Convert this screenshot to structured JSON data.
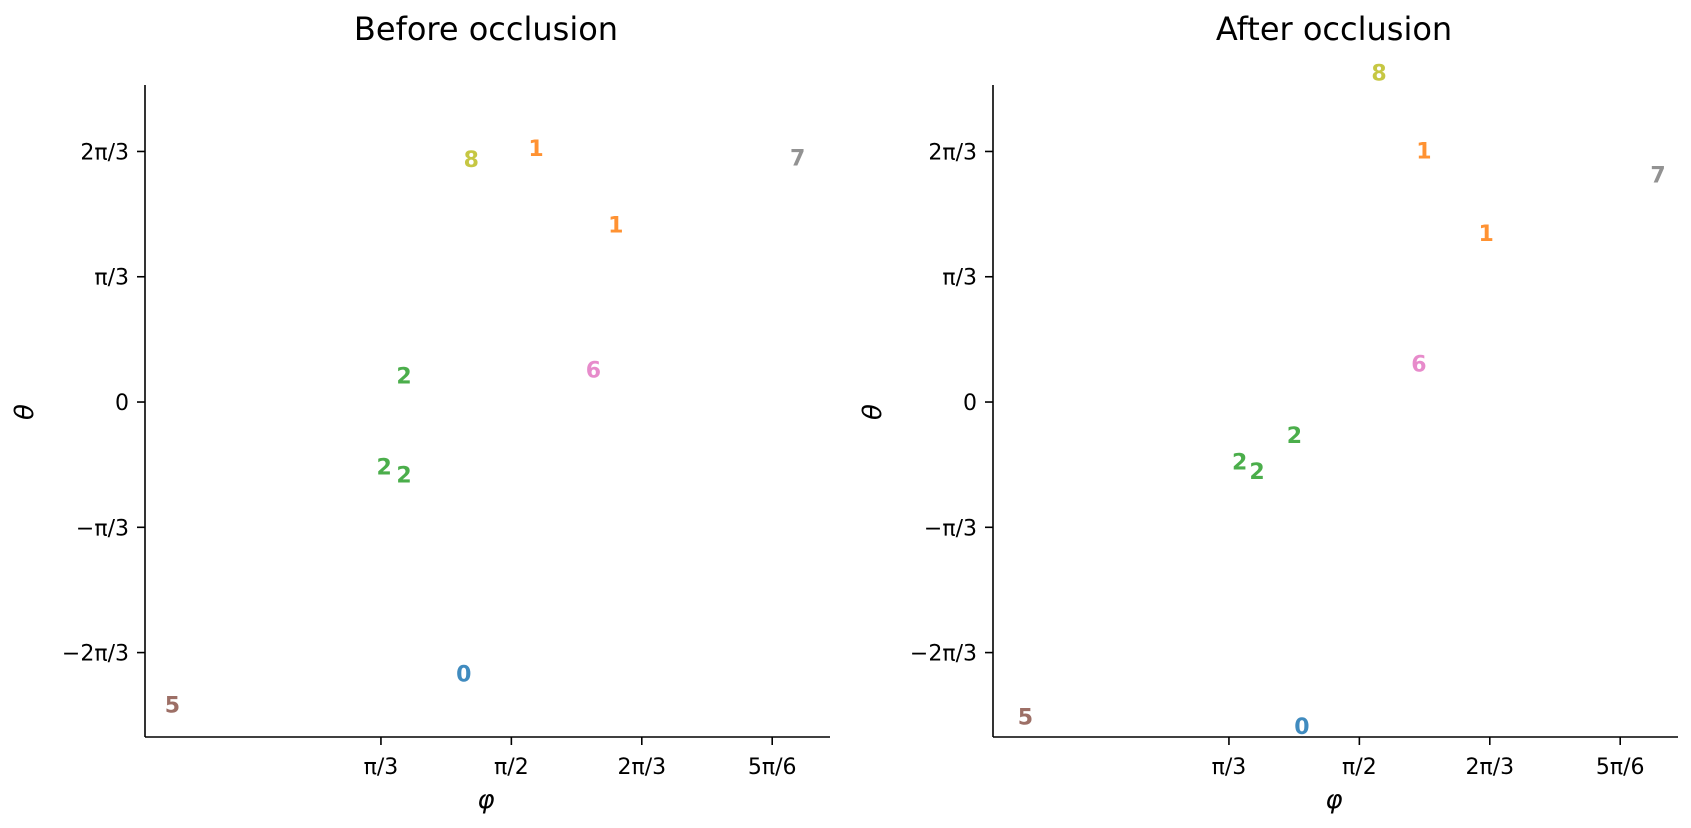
{
  "chart_data": [
    {
      "type": "scatter",
      "title": "Before occlusion",
      "xlabel": "φ",
      "ylabel": "θ",
      "x_unit": "radians",
      "y_unit": "radians",
      "xlim": [
        0.1,
        2.85
      ],
      "ylim": [
        -2.8,
        2.65
      ],
      "xticks": [
        {
          "value": 1.0472,
          "label": "π/3"
        },
        {
          "value": 1.5708,
          "label": "π/2"
        },
        {
          "value": 2.0944,
          "label": "2π/3"
        },
        {
          "value": 2.618,
          "label": "5π/6"
        }
      ],
      "yticks": [
        {
          "value": 2.0944,
          "label": "2π/3"
        },
        {
          "value": 1.0472,
          "label": "π/3"
        },
        {
          "value": 0,
          "label": "0"
        },
        {
          "value": -1.0472,
          "label": "−π/3"
        },
        {
          "value": -2.0944,
          "label": "−2π/3"
        }
      ],
      "grid": false,
      "marker_type": "digit label",
      "points": [
        {
          "label": "1",
          "x": 1.67,
          "y": 2.11,
          "color": "#ff7f0e"
        },
        {
          "label": "8",
          "x": 1.41,
          "y": 2.02,
          "color": "#bcbd22"
        },
        {
          "label": "7",
          "x": 2.72,
          "y": 2.03,
          "color": "#7f7f7f"
        },
        {
          "label": "1",
          "x": 1.99,
          "y": 1.47,
          "color": "#ff7f0e"
        },
        {
          "label": "2",
          "x": 1.14,
          "y": 0.21,
          "color": "#2ca02c"
        },
        {
          "label": "6",
          "x": 1.9,
          "y": 0.26,
          "color": "#e377c2"
        },
        {
          "label": "2",
          "x": 1.06,
          "y": -0.55,
          "color": "#2ca02c"
        },
        {
          "label": "2",
          "x": 1.14,
          "y": -0.62,
          "color": "#2ca02c"
        },
        {
          "label": "0",
          "x": 1.38,
          "y": -2.28,
          "color": "#1f77b4"
        },
        {
          "label": "5",
          "x": 0.21,
          "y": -2.54,
          "color": "#8c564b"
        }
      ]
    },
    {
      "type": "scatter",
      "title": "After occlusion",
      "xlabel": "φ",
      "ylabel": "θ",
      "x_unit": "radians",
      "y_unit": "radians",
      "xlim": [
        0.1,
        2.85
      ],
      "ylim": [
        -2.8,
        2.65
      ],
      "xticks": [
        {
          "value": 1.0472,
          "label": "π/3"
        },
        {
          "value": 1.5708,
          "label": "π/2"
        },
        {
          "value": 2.0944,
          "label": "2π/3"
        },
        {
          "value": 2.618,
          "label": "5π/6"
        }
      ],
      "yticks": [
        {
          "value": 2.0944,
          "label": "2π/3"
        },
        {
          "value": 1.0472,
          "label": "π/3"
        },
        {
          "value": 0,
          "label": "0"
        },
        {
          "value": -1.0472,
          "label": "−π/3"
        },
        {
          "value": -2.0944,
          "label": "−2π/3"
        }
      ],
      "grid": false,
      "marker_type": "digit label",
      "points": [
        {
          "label": "8",
          "x": 1.65,
          "y": 2.74,
          "color": "#bcbd22"
        },
        {
          "label": "1",
          "x": 1.83,
          "y": 2.09,
          "color": "#ff7f0e"
        },
        {
          "label": "7",
          "x": 2.77,
          "y": 1.89,
          "color": "#7f7f7f"
        },
        {
          "label": "1",
          "x": 2.08,
          "y": 1.4,
          "color": "#ff7f0e"
        },
        {
          "label": "6",
          "x": 1.81,
          "y": 0.31,
          "color": "#e377c2"
        },
        {
          "label": "2",
          "x": 1.31,
          "y": -0.29,
          "color": "#2ca02c"
        },
        {
          "label": "2",
          "x": 1.09,
          "y": -0.51,
          "color": "#2ca02c"
        },
        {
          "label": "2",
          "x": 1.16,
          "y": -0.59,
          "color": "#2ca02c"
        },
        {
          "label": "5",
          "x": 0.23,
          "y": -2.64,
          "color": "#8c564b"
        },
        {
          "label": "0",
          "x": 1.34,
          "y": -2.72,
          "color": "#1f77b4"
        }
      ]
    }
  ]
}
